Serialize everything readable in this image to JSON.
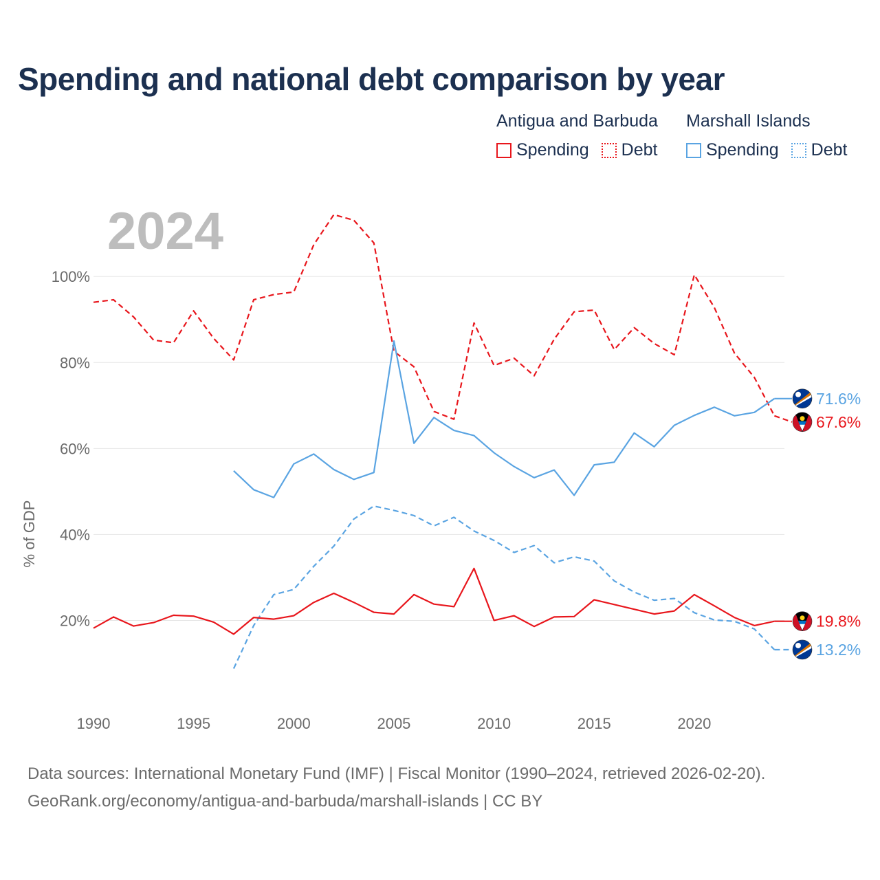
{
  "chart_data": {
    "type": "line",
    "title": "Spending and national debt comparison by year",
    "year_label": "2024",
    "ylabel": "% of GDP",
    "xlabel": "",
    "xlim": [
      1990,
      2024
    ],
    "ylim": [
      0,
      120
    ],
    "x_ticks": [
      1990,
      1995,
      2000,
      2005,
      2010,
      2015,
      2020
    ],
    "y_ticks": [
      20,
      40,
      60,
      80,
      100
    ],
    "y_tick_labels": [
      "20%",
      "40%",
      "60%",
      "80%",
      "100%"
    ],
    "grid": true,
    "legend_position": "top-right",
    "legend": {
      "groups": [
        {
          "country": "Antigua and Barbuda",
          "items": [
            {
              "label": "Spending",
              "style": "solid"
            },
            {
              "label": "Debt",
              "style": "dotted"
            }
          ]
        },
        {
          "country": "Marshall Islands",
          "items": [
            {
              "label": "Spending",
              "style": "solid"
            },
            {
              "label": "Debt",
              "style": "dotted"
            }
          ]
        }
      ]
    },
    "series": [
      {
        "name": "Antigua and Barbuda Debt",
        "country": "Antigua and Barbuda",
        "measure": "Debt",
        "color": "#e8161c",
        "dashed": true,
        "flag": "ag",
        "end_label": "67.6%",
        "x": [
          1990,
          1991,
          1992,
          1993,
          1994,
          1995,
          1996,
          1997,
          1998,
          1999,
          2000,
          2001,
          2002,
          2003,
          2004,
          2005,
          2006,
          2007,
          2008,
          2009,
          2010,
          2011,
          2012,
          2013,
          2014,
          2015,
          2016,
          2017,
          2018,
          2019,
          2020,
          2021,
          2022,
          2023,
          2024
        ],
        "values": [
          94.0,
          94.6,
          90.6,
          85.2,
          84.6,
          92.0,
          85.6,
          80.6,
          94.6,
          95.8,
          96.4,
          107.4,
          114.4,
          113.1,
          107.8,
          82.6,
          79.0,
          68.6,
          66.8,
          89.2,
          79.3,
          81.0,
          76.9,
          85.4,
          91.8,
          92.2,
          83.0,
          88.1,
          84.4,
          81.8,
          100.4,
          92.8,
          82.2,
          76.5,
          67.6
        ]
      },
      {
        "name": "Marshall Islands Spending",
        "country": "Marshall Islands",
        "measure": "Spending",
        "color": "#5aa4e2",
        "dashed": false,
        "flag": "mh",
        "end_label": "71.6%",
        "x": [
          1997,
          1998,
          1999,
          2000,
          2001,
          2002,
          2003,
          2004,
          2005,
          2006,
          2007,
          2008,
          2009,
          2010,
          2011,
          2012,
          2013,
          2014,
          2015,
          2016,
          2017,
          2018,
          2019,
          2020,
          2021,
          2022,
          2023,
          2024
        ],
        "values": [
          54.8,
          50.4,
          48.6,
          56.4,
          58.7,
          55.1,
          52.8,
          54.4,
          85.0,
          61.2,
          67.2,
          64.2,
          63.0,
          59.0,
          55.8,
          53.2,
          55.0,
          49.1,
          56.2,
          56.8,
          63.6,
          60.4,
          65.4,
          67.7,
          69.6,
          67.6,
          68.4,
          71.6
        ]
      },
      {
        "name": "Marshall Islands Debt",
        "country": "Marshall Islands",
        "measure": "Debt",
        "color": "#5aa4e2",
        "dashed": true,
        "flag": "mh",
        "end_label": "13.2%",
        "x": [
          1997,
          1998,
          1999,
          2000,
          2001,
          2002,
          2003,
          2004,
          2005,
          2006,
          2007,
          2008,
          2009,
          2010,
          2011,
          2012,
          2013,
          2014,
          2015,
          2016,
          2017,
          2018,
          2019,
          2020,
          2021,
          2022,
          2023,
          2024
        ],
        "values": [
          8.8,
          18.8,
          26.0,
          27.2,
          32.6,
          37.3,
          43.6,
          46.6,
          45.6,
          44.4,
          42.0,
          44.0,
          40.8,
          38.6,
          35.8,
          37.4,
          33.4,
          34.8,
          33.8,
          29.2,
          26.6,
          24.7,
          25.1,
          21.8,
          20.1,
          19.8,
          18.0,
          13.2
        ]
      },
      {
        "name": "Antigua and Barbuda Spending",
        "country": "Antigua and Barbuda",
        "measure": "Spending",
        "color": "#e8161c",
        "dashed": false,
        "flag": "ag",
        "end_label": "19.8%",
        "x": [
          1990,
          1991,
          1992,
          1993,
          1994,
          1995,
          1996,
          1997,
          1998,
          1999,
          2000,
          2001,
          2002,
          2003,
          2004,
          2005,
          2006,
          2007,
          2008,
          2009,
          2010,
          2011,
          2012,
          2013,
          2014,
          2015,
          2016,
          2017,
          2018,
          2019,
          2020,
          2021,
          2022,
          2023,
          2024
        ],
        "values": [
          18.2,
          20.8,
          18.7,
          19.5,
          21.2,
          21.0,
          19.6,
          16.8,
          20.7,
          20.3,
          21.1,
          24.2,
          26.3,
          24.2,
          21.9,
          21.5,
          26.0,
          23.8,
          23.2,
          32.1,
          20.0,
          21.1,
          18.6,
          20.8,
          20.9,
          24.8,
          23.7,
          22.6,
          21.5,
          22.2,
          26.0,
          23.4,
          20.7,
          18.8,
          19.8
        ]
      }
    ],
    "source": "Data sources: International Monetary Fund (IMF) | Fiscal Monitor (1990–2024, retrieved 2026-02-20).",
    "attribution": "GeoRank.org/economy/antigua-and-barbuda/marshall-islands | CC BY"
  },
  "colors": {
    "red": "#e8161c",
    "blue": "#5aa4e2",
    "title": "#1c3050"
  }
}
